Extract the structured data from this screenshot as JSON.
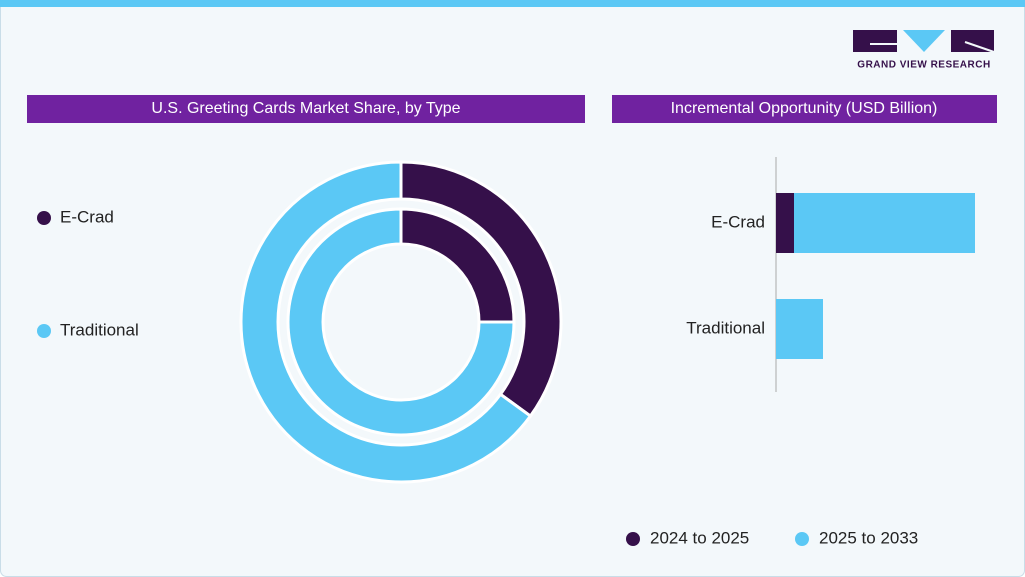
{
  "logo": "GRAND VIEW RESEARCH",
  "chart_data": [
    {
      "type": "donut",
      "title": "U.S. Greeting Cards Market Share, by Type",
      "categories": [
        "E-Crad",
        "Traditional"
      ],
      "colors": [
        "#35104a",
        "#5bc8f5"
      ],
      "series": [
        {
          "values": [
            25,
            75
          ]
        },
        {
          "values": [
            35,
            65
          ]
        }
      ]
    },
    {
      "type": "hbar-stacked",
      "title": "Incremental Opportunity (USD Billion)",
      "categories": [
        "E-Crad",
        "Traditional"
      ],
      "series": [
        {
          "name": "2024 to 2025",
          "color": "#35104a",
          "values": [
            0.9,
            0
          ]
        },
        {
          "name": "2025 to 2033",
          "color": "#5bc8f5",
          "values": [
            9.05,
            2.35
          ]
        }
      ]
    }
  ]
}
